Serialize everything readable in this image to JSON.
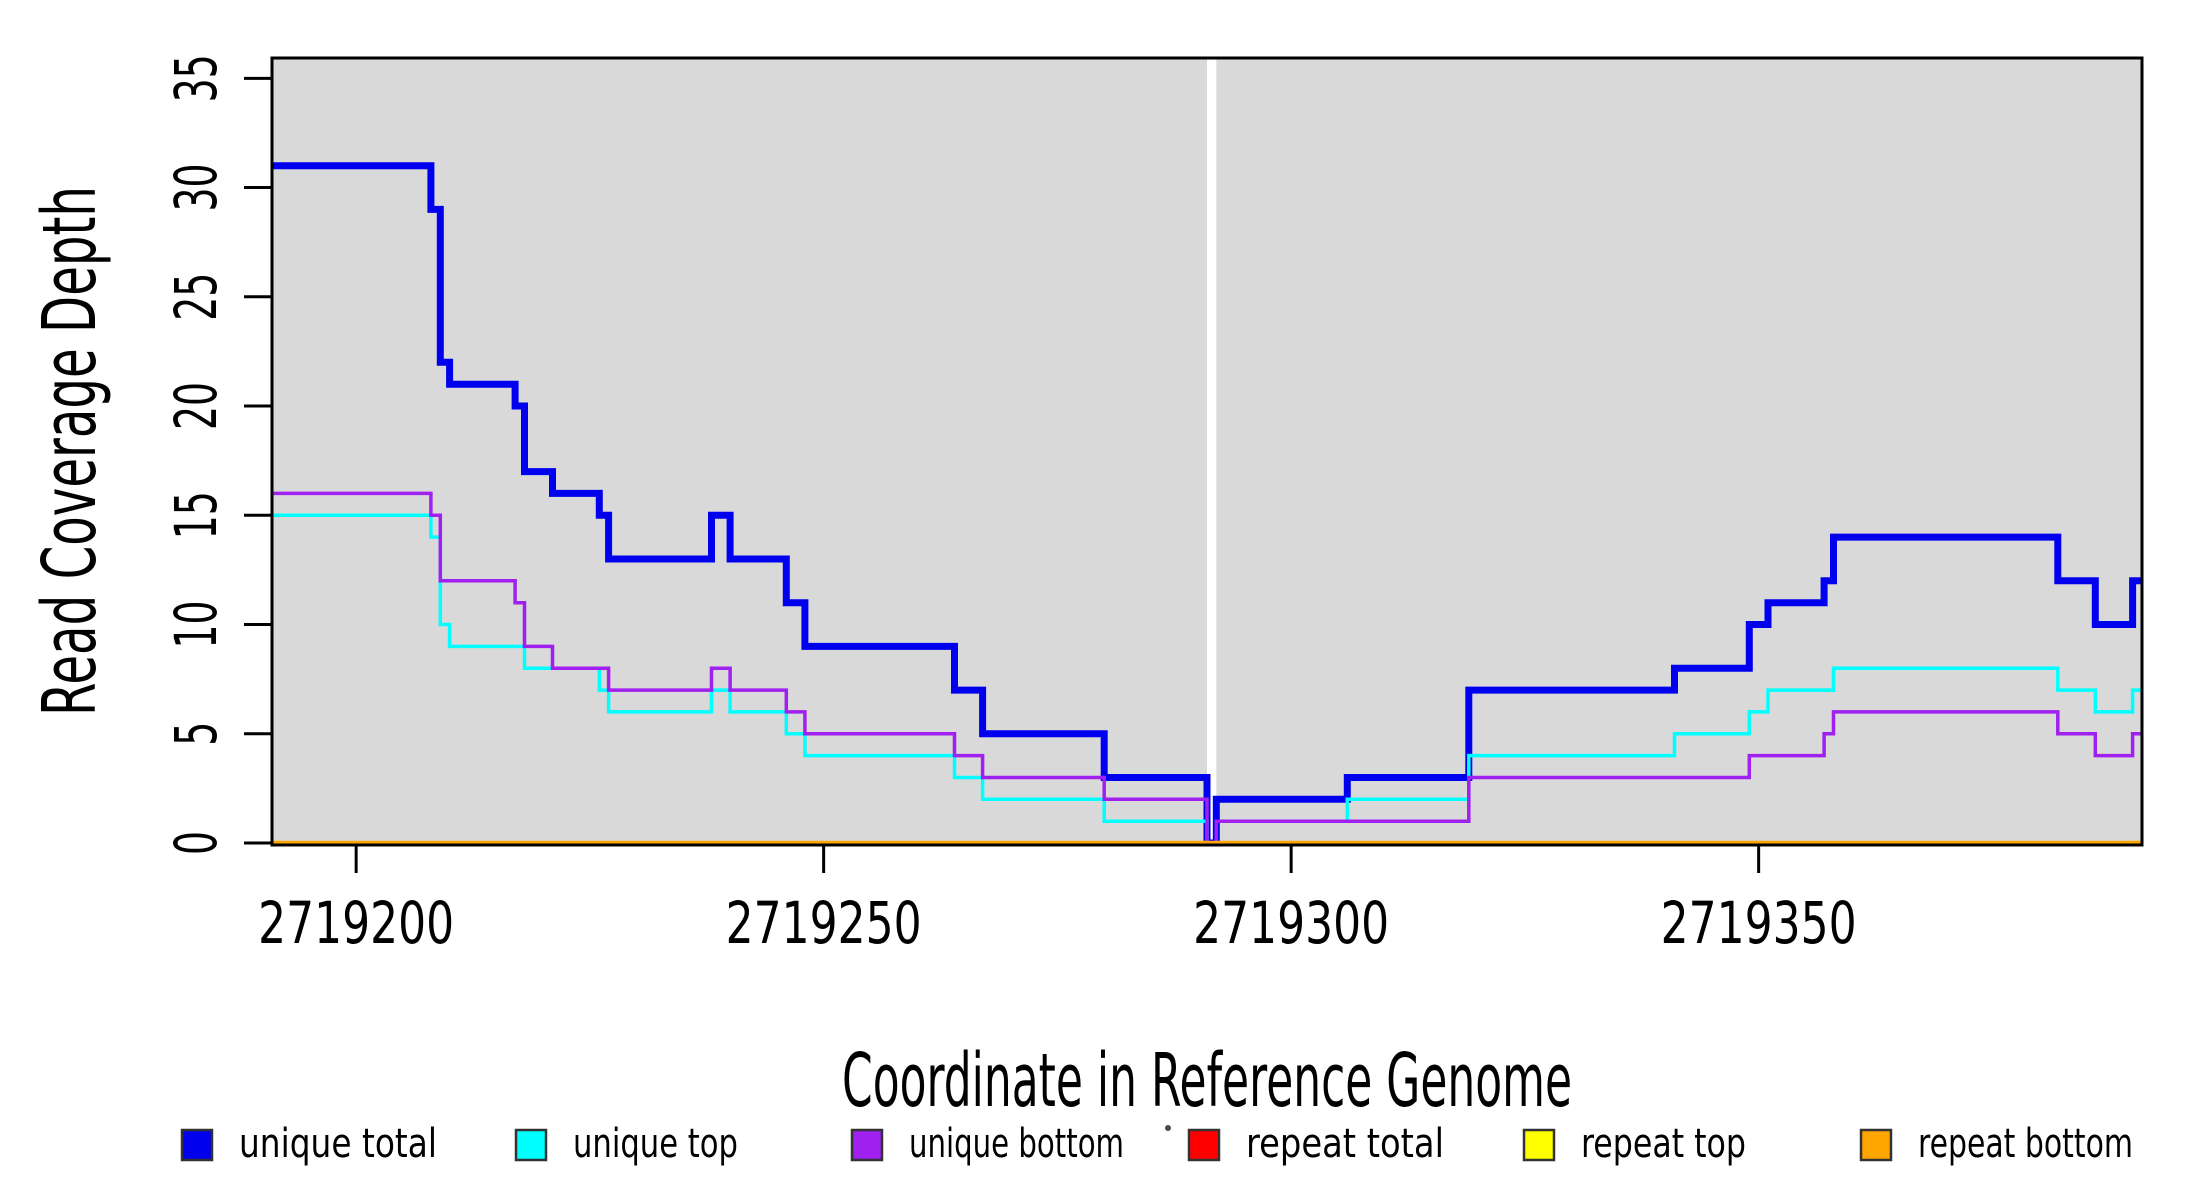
{
  "figure": {
    "background": "#ffffff",
    "stray_mark": {
      "present": true
    }
  },
  "chart_data": {
    "type": "line",
    "subtype": "step-coverage-plot",
    "title": "",
    "xlabel": "Coordinate in Reference Genome",
    "ylabel": "Read Coverage Depth",
    "xlim": [
      2719191,
      2719391
    ],
    "ylim": [
      0,
      35.93
    ],
    "x_end": 2719391,
    "grid": "off",
    "plot_background": "#d9d9d9",
    "frame_color": "#000000",
    "x_ticks": {
      "values": [
        2719200,
        2719250,
        2719300,
        2719350
      ],
      "labels": [
        "2719200",
        "2719250",
        "2719300",
        "2719350"
      ]
    },
    "y_ticks": {
      "values": [
        0,
        5,
        10,
        15,
        20,
        25,
        30,
        35
      ],
      "labels": [
        "0",
        "5",
        "10",
        "15",
        "20",
        "25",
        "30",
        "35"
      ]
    },
    "gap_band": {
      "x_start": 2719291,
      "x_end": 2719292,
      "color": "#ffffff",
      "note": "white vertical band where all coverage drops to 0"
    },
    "series": [
      {
        "name": "unique total",
        "color": "#0000ee",
        "line_width": 7,
        "steps": [
          [
            2719191,
            31
          ],
          [
            2719208,
            29
          ],
          [
            2719209,
            22
          ],
          [
            2719210,
            21
          ],
          [
            2719217,
            20
          ],
          [
            2719218,
            17
          ],
          [
            2719221,
            16
          ],
          [
            2719226,
            15
          ],
          [
            2719227,
            13
          ],
          [
            2719238,
            15
          ],
          [
            2719240,
            13
          ],
          [
            2719246,
            11
          ],
          [
            2719248,
            9
          ],
          [
            2719264,
            7
          ],
          [
            2719267,
            5
          ],
          [
            2719280,
            3
          ],
          [
            2719291,
            0
          ],
          [
            2719292,
            2
          ],
          [
            2719306,
            3
          ],
          [
            2719319,
            7
          ],
          [
            2719341,
            8
          ],
          [
            2719349,
            10
          ],
          [
            2719351,
            11
          ],
          [
            2719357,
            12
          ],
          [
            2719358,
            14
          ],
          [
            2719382,
            12
          ],
          [
            2719386,
            10
          ],
          [
            2719390,
            12
          ]
        ]
      },
      {
        "name": "unique top",
        "color": "#00ffff",
        "line_width": 3.5,
        "steps": [
          [
            2719191,
            15
          ],
          [
            2719208,
            14
          ],
          [
            2719209,
            10
          ],
          [
            2719210,
            9
          ],
          [
            2719218,
            8
          ],
          [
            2719226,
            7
          ],
          [
            2719227,
            6
          ],
          [
            2719238,
            7
          ],
          [
            2719240,
            6
          ],
          [
            2719246,
            5
          ],
          [
            2719248,
            4
          ],
          [
            2719264,
            3
          ],
          [
            2719267,
            2
          ],
          [
            2719280,
            1
          ],
          [
            2719291,
            0
          ],
          [
            2719292,
            1
          ],
          [
            2719306,
            2
          ],
          [
            2719319,
            4
          ],
          [
            2719341,
            5
          ],
          [
            2719349,
            6
          ],
          [
            2719351,
            7
          ],
          [
            2719358,
            8
          ],
          [
            2719382,
            7
          ],
          [
            2719386,
            6
          ],
          [
            2719390,
            7
          ]
        ]
      },
      {
        "name": "unique bottom",
        "color": "#a020f0",
        "line_width": 3.5,
        "steps": [
          [
            2719191,
            16
          ],
          [
            2719208,
            15
          ],
          [
            2719209,
            12
          ],
          [
            2719217,
            11
          ],
          [
            2719218,
            9
          ],
          [
            2719221,
            8
          ],
          [
            2719227,
            7
          ],
          [
            2719238,
            8
          ],
          [
            2719240,
            7
          ],
          [
            2719246,
            6
          ],
          [
            2719248,
            5
          ],
          [
            2719264,
            4
          ],
          [
            2719267,
            3
          ],
          [
            2719280,
            2
          ],
          [
            2719291,
            0
          ],
          [
            2719292,
            1
          ],
          [
            2719319,
            3
          ],
          [
            2719349,
            4
          ],
          [
            2719357,
            5
          ],
          [
            2719358,
            6
          ],
          [
            2719382,
            5
          ],
          [
            2719386,
            4
          ],
          [
            2719390,
            5
          ]
        ]
      },
      {
        "name": "repeat total",
        "color": "#ff0000",
        "line_width": 3.5,
        "steps": [
          [
            2719191,
            0
          ]
        ]
      },
      {
        "name": "repeat top",
        "color": "#ffff00",
        "line_width": 3.5,
        "steps": [
          [
            2719191,
            0
          ]
        ]
      },
      {
        "name": "repeat bottom",
        "color": "#ffa500",
        "line_width": 4.5,
        "steps": [
          [
            2719191,
            0
          ]
        ]
      }
    ],
    "legend": {
      "position": "bottom",
      "swatch_border": "#333333",
      "items": [
        {
          "label": "unique total",
          "color": "#0000ee"
        },
        {
          "label": "unique top",
          "color": "#00ffff"
        },
        {
          "label": "unique bottom",
          "color": "#a020f0"
        },
        {
          "label": "repeat total",
          "color": "#ff0000"
        },
        {
          "label": "repeat top",
          "color": "#ffff00"
        },
        {
          "label": "repeat bottom",
          "color": "#ffa500"
        }
      ]
    }
  }
}
